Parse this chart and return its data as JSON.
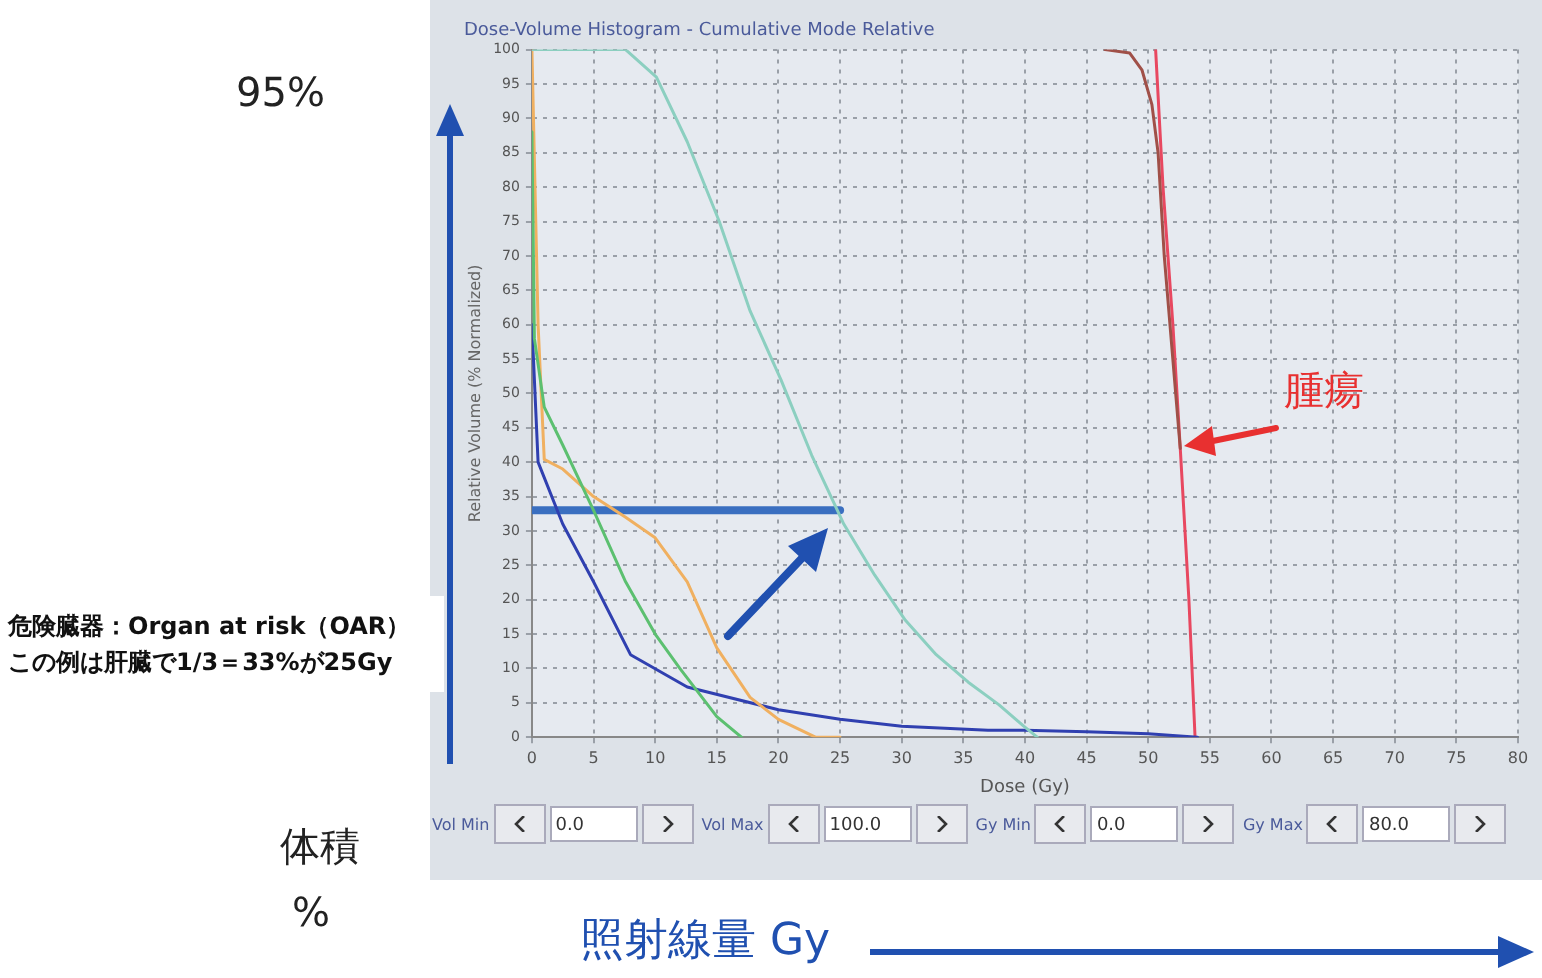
{
  "chart_data": {
    "type": "line",
    "title": "Dose-Volume Histogram - Cumulative Mode Relative",
    "xlabel": "Dose (Gy)",
    "ylabel": "Relative Volume (% Normalized)",
    "xlim": [
      0,
      80
    ],
    "xticks": [
      0,
      5,
      10,
      15,
      20,
      25,
      30,
      35,
      40,
      45,
      50,
      55,
      60,
      65,
      70,
      75,
      80
    ],
    "ylim": [
      0,
      100
    ],
    "yticks": [
      0,
      5,
      10,
      15,
      20,
      25,
      30,
      35,
      40,
      45,
      50,
      55,
      60,
      65,
      70,
      75,
      80,
      85,
      90,
      95,
      100
    ],
    "grid": true,
    "legend": false,
    "marker": "none",
    "line_style": "solid",
    "series": [
      {
        "color": "#8ccfc0",
        "x": [
          0,
          7.6,
          10.1,
          12.6,
          15.2,
          17.7,
          20.2,
          22.7,
          25.3,
          27.8,
          30.3,
          32.8,
          35.4,
          37.9,
          39.9,
          41
        ],
        "values": [
          100,
          100,
          96,
          86.6,
          75,
          62,
          52,
          41,
          31,
          23.6,
          17,
          12,
          8,
          4.7,
          1.6,
          0
        ]
      },
      {
        "color": "#5cc070",
        "x": [
          0,
          0.2,
          1,
          2.5,
          5,
          7.6,
          10,
          12,
          15,
          17
        ],
        "values": [
          88,
          58,
          48,
          42.5,
          33,
          22.6,
          15,
          10,
          3,
          0
        ]
      },
      {
        "color": "#f0b060",
        "x": [
          0,
          0.5,
          1,
          2.5,
          5,
          7.6,
          10,
          12.6,
          15,
          17.7,
          20,
          23,
          25
        ],
        "values": [
          100,
          60,
          40.4,
          39,
          35,
          32,
          29,
          22.6,
          13,
          5.8,
          2.6,
          0,
          0
        ]
      },
      {
        "color": "#3040b0",
        "x": [
          0,
          0.5,
          2.5,
          5,
          8,
          12.6,
          20,
          25,
          30,
          37,
          40,
          45,
          50,
          54
        ],
        "values": [
          60,
          40,
          31,
          22.6,
          12,
          7.3,
          4,
          2.6,
          1.6,
          1,
          1,
          0.8,
          0.5,
          0
        ]
      },
      {
        "color": "#a05048",
        "x": [
          46.5,
          48.5,
          49.5,
          50.3,
          50.8,
          51.3,
          52.6
        ],
        "values": [
          100,
          99.5,
          97,
          92,
          85,
          70,
          42
        ]
      },
      {
        "color": "#e84860",
        "x": [
          50.6,
          51.2,
          52,
          52.6,
          53.3,
          53.8
        ],
        "values": [
          100,
          80,
          60,
          42,
          20,
          0
        ]
      },
      {
        "color": "#3a6fc0",
        "x": [
          0,
          25
        ],
        "values": [
          33,
          33
        ]
      }
    ],
    "annotations": [
      "95%",
      "体積",
      "%",
      "照射線量 Gy",
      "危険臓器：Organ at risk（OAR）",
      "この例は肝臓で1/3＝33%が25Gy",
      {
        "text": "腫瘍",
        "x": 52.6,
        "y": 42
      },
      "Vol Min",
      "0.0",
      "Vol Max",
      "100.0",
      "Gy Min",
      "0.0",
      "Gy Max",
      "80.0"
    ]
  }
}
